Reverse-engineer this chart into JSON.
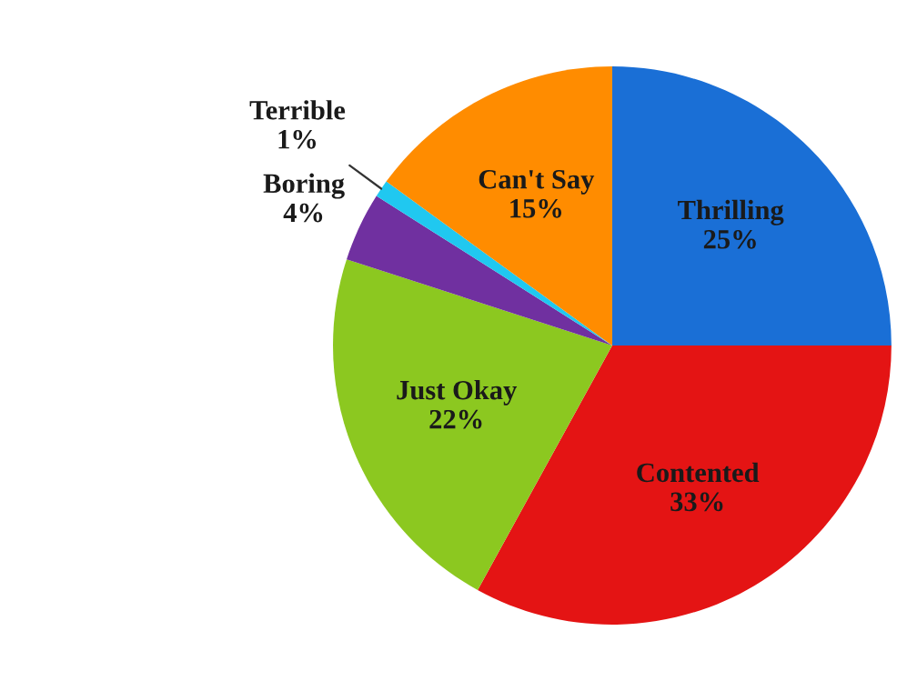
{
  "chart_data": {
    "type": "pie",
    "categories": [
      "Thrilling",
      "Contented",
      "Just Okay",
      "Boring",
      "Terrible",
      "Can't Say"
    ],
    "values": [
      25,
      33,
      22,
      4,
      1,
      15
    ],
    "colors": [
      "#1a6fd6",
      "#e41414",
      "#8cc820",
      "#7030a0",
      "#20c8f0",
      "#ff8c00"
    ],
    "value_labels": [
      "25%",
      "33%",
      "22%",
      "4%",
      "1%",
      "15%"
    ]
  }
}
